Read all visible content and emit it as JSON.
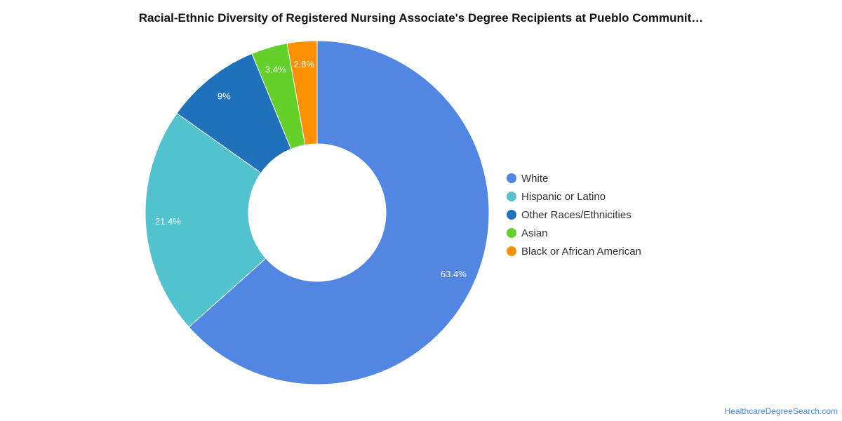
{
  "chart_data": {
    "type": "pie",
    "title": "Racial-Ethnic Diversity of Registered Nursing Associate's Degree Recipients at Pueblo Communit…",
    "categories": [
      "White",
      "Hispanic or Latino",
      "Other Races/Ethnicities",
      "Asian",
      "Black or African American"
    ],
    "values": [
      63.4,
      21.4,
      9,
      3.4,
      2.8
    ],
    "labels": [
      "63.4%",
      "21.4%",
      "9%",
      "3.4%",
      "2.8%"
    ],
    "colors": [
      "#5286e3",
      "#52c2ce",
      "#1f71bb",
      "#63d12a",
      "#fb9002"
    ],
    "legend_position": "right",
    "donut": true
  },
  "watermark": "HealthcareDegreeSearch.com"
}
